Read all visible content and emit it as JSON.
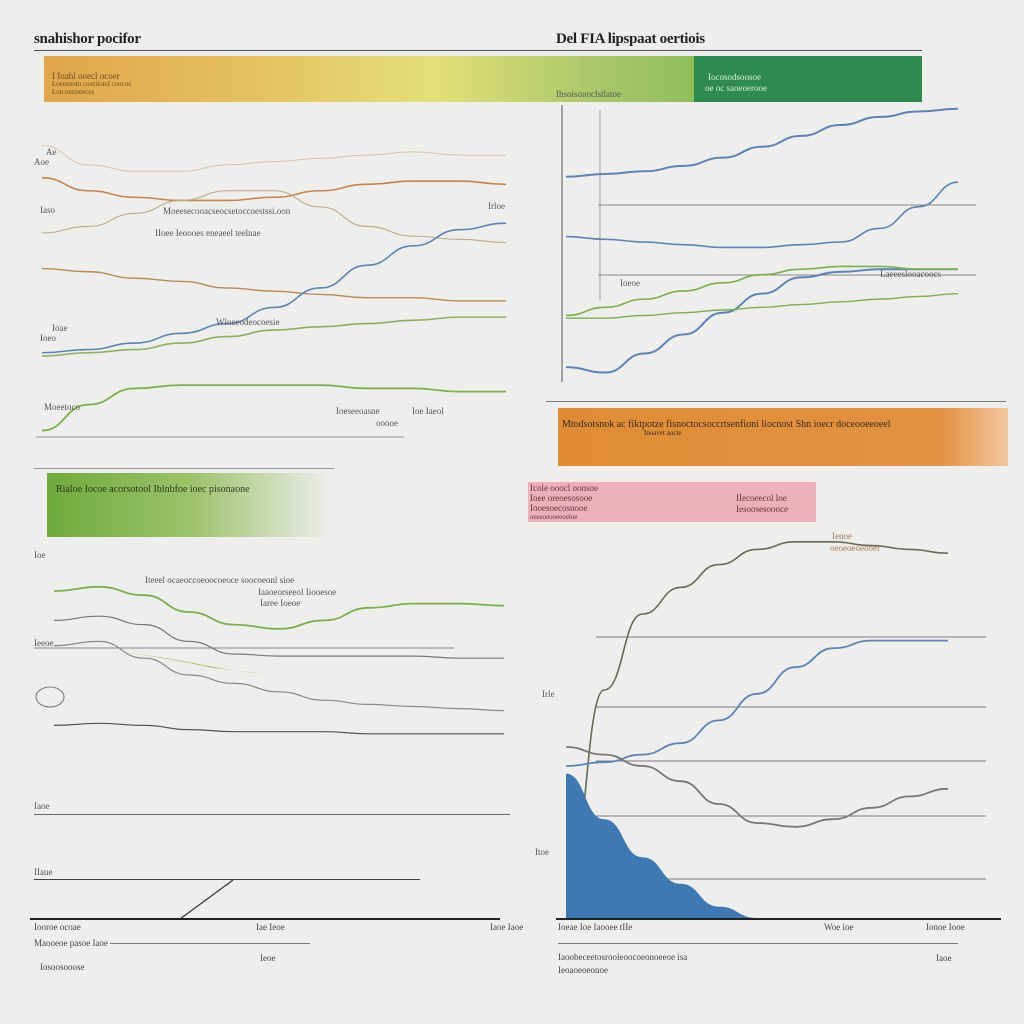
{
  "header": {
    "left_title": "snahishor pocifor",
    "right_title": "Del FIA lipspaat oertiois"
  },
  "bands": {
    "top_left": {
      "line1": "I Ioahl ooecl ocoer",
      "line2": "Loeesootn coxriiond coocos",
      "line3": "Lon ostooteces"
    },
    "top_right": {
      "line1": "Iocosodsoosoe",
      "line2": "oe oc saoeoerooe",
      "sub": "Ihsoisonoclstlatoe"
    },
    "mid_right": {
      "line1": "Mtodsotsnok ac fiktpotze fisnoctocsoccrtsenfioni liocnost Shn ioecr doceooeeoeel",
      "line2": "Inoavet aocte"
    },
    "mid_left": {
      "line1": "Rialoe Iocoe acorsotool Iblnbfoe ioec pisonaone"
    },
    "pink": {
      "rows": [
        "Icole ooocl oonsoe",
        "Ioee oreoesosooe",
        "Iooesoecosnooe",
        "oeesoeooeeoeloe"
      ],
      "right_rows": [
        "IIecoeecol loe",
        "Iesoosesoooce"
      ]
    }
  },
  "charts": {
    "top_left_labels": [
      "Ae",
      "Aoe",
      "Iaso",
      "Moeesecooacseocsetoccoestssi.oon",
      "IIoee Ieoooes eneaeel teelnae",
      "Irloe",
      "Ioae",
      "Ioeo",
      "Wloeeodeocoesie",
      "Moeetoco",
      "Ioeseeoasne",
      "Ioe Iaeol",
      "ooooe"
    ],
    "top_right_labels": [
      "Ioeoe",
      "Laeeeslooacoocs"
    ],
    "bottom_left_labels": [
      "Ioe",
      "Iteeel ocaeoccoeoocoeoce soocoeonl sioe",
      "Iaaoeorseeol Iiooesoe",
      "Iaree Ioeoe",
      "Ieeoe",
      "Iaoe",
      "IIaue"
    ],
    "bottom_right_labels": [
      "Ienoe",
      "oeoeoeoeooel",
      "Irle",
      "Itoe"
    ]
  },
  "footer": {
    "left": [
      "Iooroe ocoae",
      "Maooeoe pasoe Iaoe",
      "Iosoosooose"
    ],
    "left_mid": [
      "Iae Ieoe",
      "Iaoe Iaoe",
      "Ieoe"
    ],
    "right": [
      "Ioeae Ioe Iaooee tIIe",
      "Iaoobeceetosrooleoocoeonoeeoe isa",
      "Ieoaoeoeonoe"
    ],
    "right_mid": [
      "Woe ioe",
      "Ionoe Iooe",
      "Iaoe"
    ]
  },
  "colors": {
    "orange": "#d9893a",
    "yellow": "#e3de6e",
    "green": "#7bb04a",
    "dark_green": "#2e8a4e",
    "blue": "#5b84b8",
    "pink": "#eeb0bd",
    "blue_fill": "#3f79b4"
  },
  "chart_data": [
    {
      "type": "line",
      "title": "snahishor pocifor",
      "x": [
        0,
        1,
        2,
        3,
        4,
        5,
        6,
        7,
        8,
        9,
        10
      ],
      "series": [
        {
          "values": [
            9.0,
            8.4,
            8.2,
            8.2,
            8.4,
            8.5,
            8.6,
            8.7,
            8.8,
            8.7,
            8.7
          ]
        },
        {
          "values": [
            8.0,
            7.6,
            7.4,
            7.3,
            7.3,
            7.4,
            7.6,
            7.8,
            7.9,
            7.9,
            7.8
          ]
        },
        {
          "values": [
            6.3,
            6.5,
            6.9,
            7.3,
            7.6,
            7.6,
            7.1,
            6.5,
            6.2,
            6.1,
            6.0
          ]
        },
        {
          "values": [
            5.2,
            5.1,
            4.9,
            4.8,
            4.6,
            4.5,
            4.4,
            4.3,
            4.3,
            4.2,
            4.2
          ]
        },
        {
          "values": [
            2.6,
            2.7,
            2.9,
            3.2,
            3.5,
            4.0,
            4.6,
            5.3,
            5.9,
            6.4,
            6.6
          ]
        },
        {
          "values": [
            2.5,
            2.6,
            2.7,
            2.9,
            3.1,
            3.3,
            3.4,
            3.5,
            3.6,
            3.7,
            3.7
          ]
        },
        {
          "values": [
            0.2,
            1.0,
            1.5,
            1.6,
            1.6,
            1.6,
            1.6,
            1.5,
            1.5,
            1.4,
            1.4
          ]
        }
      ],
      "ylim": [
        0,
        10
      ]
    },
    {
      "type": "line",
      "title": "Del FIA lipspaat oertiois",
      "x": [
        0,
        1,
        2,
        3,
        4,
        5,
        6,
        7,
        8,
        9,
        10
      ],
      "series": [
        {
          "values": [
            7.4,
            7.5,
            7.6,
            7.8,
            8.1,
            8.5,
            8.9,
            9.3,
            9.6,
            9.8,
            9.9
          ]
        },
        {
          "values": [
            5.2,
            5.1,
            5.0,
            4.9,
            4.8,
            4.8,
            4.9,
            5.0,
            5.5,
            6.3,
            7.2
          ]
        },
        {
          "values": [
            0.4,
            0.2,
            0.9,
            1.6,
            2.4,
            3.1,
            3.7,
            3.9,
            4.0,
            4.0,
            4.0
          ]
        },
        {
          "values": [
            2.3,
            2.6,
            2.9,
            3.2,
            3.5,
            3.8,
            4.0,
            4.1,
            4.1,
            4.0,
            4.0
          ]
        },
        {
          "values": [
            2.2,
            2.2,
            2.3,
            2.4,
            2.5,
            2.6,
            2.7,
            2.8,
            2.9,
            3.0,
            3.1
          ]
        }
      ],
      "ylim": [
        0,
        10
      ]
    },
    {
      "type": "area",
      "x": [
        0,
        1,
        2,
        3,
        4,
        5,
        6,
        7,
        8,
        9,
        10
      ],
      "series": [
        {
          "values": [
            9.0,
            9.2,
            8.8,
            8.0,
            7.4,
            7.2,
            7.6,
            8.2,
            8.4,
            8.4,
            8.3
          ]
        },
        {
          "values": [
            7.6,
            7.8,
            7.4,
            6.6,
            6.0,
            5.9,
            5.9,
            5.9,
            5.9,
            5.8,
            5.8
          ]
        },
        {
          "values": [
            6.4,
            6.6,
            5.8,
            5.0,
            4.6,
            4.2,
            3.8,
            3.6,
            3.5,
            3.4,
            3.3
          ]
        },
        {
          "values": [
            2.6,
            2.7,
            2.6,
            2.4,
            2.3,
            2.3,
            2.3,
            2.2,
            2.2,
            2.2,
            2.2
          ]
        }
      ],
      "ylim": [
        0,
        10
      ]
    },
    {
      "type": "line",
      "x": [
        0,
        1,
        2,
        3,
        4,
        5,
        6,
        7,
        8,
        9,
        10
      ],
      "series": [
        {
          "values": [
            0.5,
            6.0,
            8.0,
            8.7,
            9.3,
            9.7,
            9.9,
            9.9,
            9.8,
            9.7,
            9.6
          ]
        },
        {
          "values": [
            4.0,
            4.1,
            4.3,
            4.6,
            5.2,
            5.9,
            6.6,
            7.1,
            7.3,
            7.3,
            7.3
          ]
        },
        {
          "values": [
            4.5,
            4.3,
            4.0,
            3.6,
            3.0,
            2.5,
            2.4,
            2.6,
            2.9,
            3.2,
            3.4
          ]
        },
        {
          "values": [
            3.8,
            2.6,
            1.6,
            0.9,
            0.3,
            0.0,
            0.0,
            0.0,
            0.0,
            0.0,
            0.0
          ]
        }
      ],
      "ylim": [
        0,
        10
      ]
    }
  ]
}
